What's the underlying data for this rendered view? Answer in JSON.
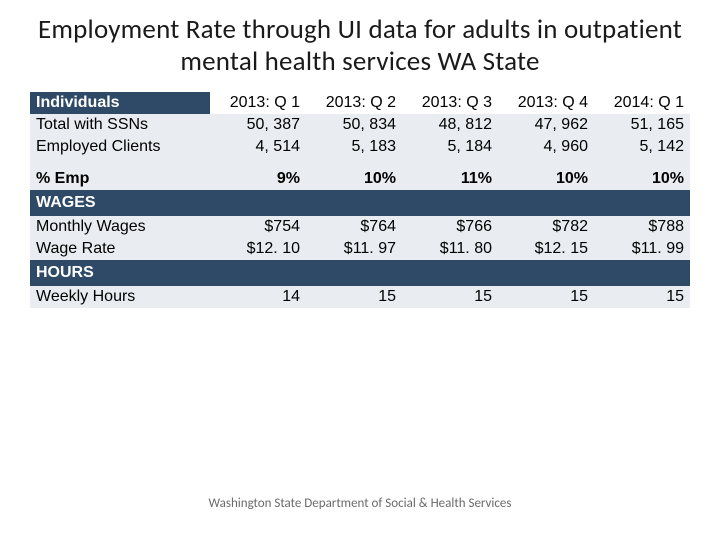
{
  "title": "Employment Rate through UI data for adults in outpatient mental health services WA State",
  "colors": {
    "header_bg": "#2f4a66",
    "header_fg": "#ffffff",
    "row_bg": "#e9edf1",
    "row_fg": "#000000",
    "page_bg": "#ffffff",
    "title_fg": "#1a1a1a",
    "footer_fg": "#6b6b6b"
  },
  "fonts": {
    "title_family": "Calibri",
    "title_size_pt": 27,
    "table_family": "Verdana",
    "table_size_pt": 16,
    "footer_size_pt": 13
  },
  "table": {
    "col_labels": [
      "Individuals",
      "2013: Q 1",
      "2013: Q 2",
      "2013: Q 3",
      "2013: Q 4",
      "2014: Q 1"
    ],
    "rows": {
      "total_ssn": {
        "label": "Total with SSNs",
        "values": [
          "50, 387",
          "50, 834",
          "48, 812",
          "47, 962",
          "51, 165"
        ]
      },
      "employed": {
        "label": "Employed Clients",
        "values": [
          "4, 514",
          "5, 183",
          "5, 184",
          "4, 960",
          "5, 142"
        ]
      },
      "pct_emp": {
        "label": "% Emp",
        "values": [
          "9%",
          "10%",
          "11%",
          "10%",
          "10%"
        ]
      },
      "wages_hdr": {
        "label": "WAGES"
      },
      "mwages": {
        "label": "Monthly Wages",
        "values": [
          "$754",
          "$764",
          "$766",
          "$782",
          "$788"
        ]
      },
      "wrate": {
        "label": "Wage Rate",
        "values": [
          "$12. 10",
          "$11. 97",
          "$11. 80",
          "$12. 15",
          "$11. 99"
        ]
      },
      "hours_hdr": {
        "label": "HOURS"
      },
      "whours": {
        "label": "Weekly Hours",
        "values": [
          "14",
          "15",
          "15",
          "15",
          "15"
        ]
      }
    }
  },
  "footer": "Washington State Department of Social & Health Services"
}
